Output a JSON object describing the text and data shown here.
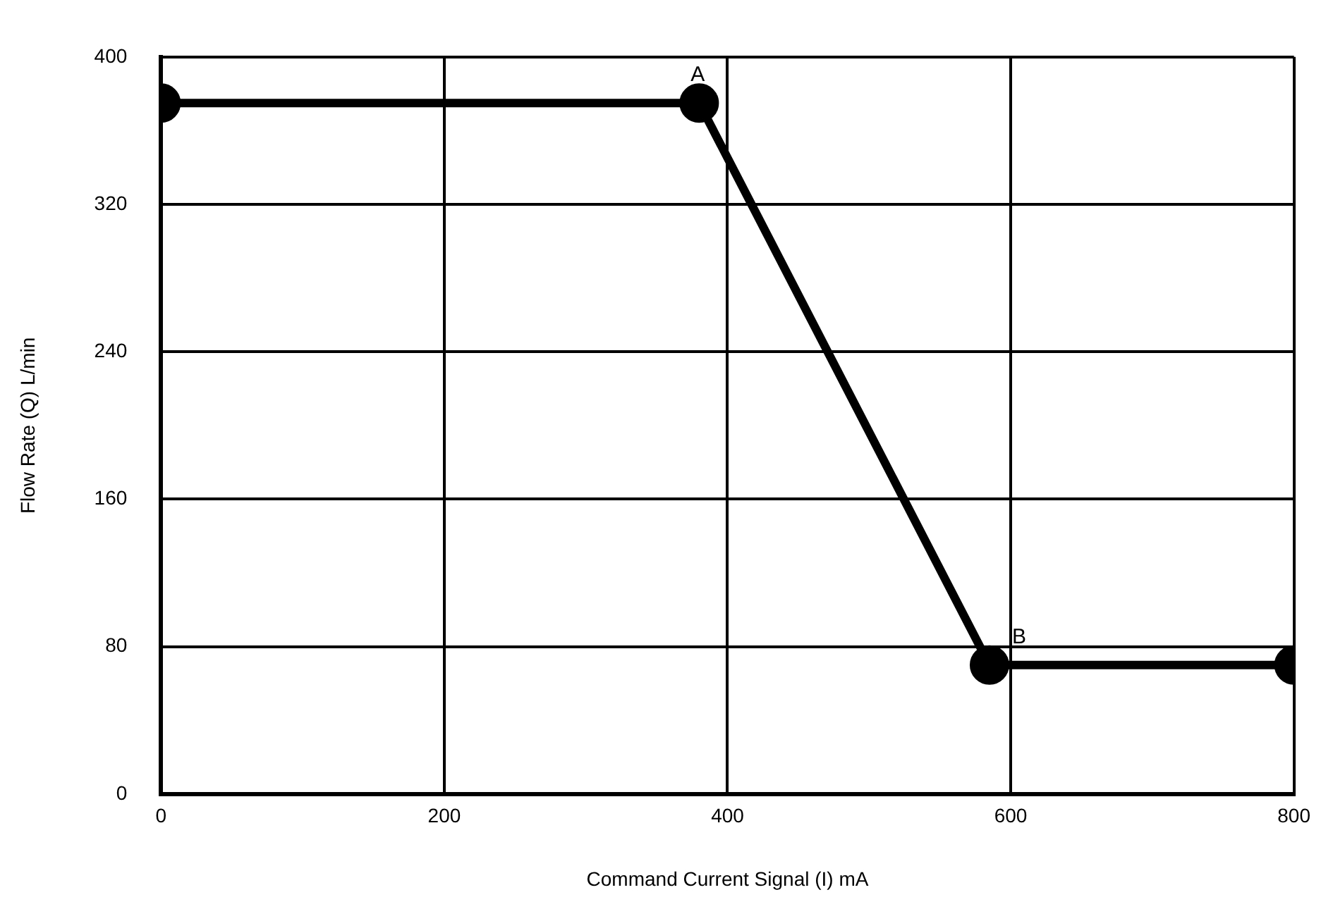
{
  "chart_data": {
    "type": "line",
    "xlabel": "Command Current Signal (I) mA",
    "ylabel": "Flow Rate (Q) L/min",
    "x": [
      0,
      380,
      585,
      800
    ],
    "series": [
      {
        "color": "#000000",
        "values": [
          375,
          375,
          70,
          70
        ]
      }
    ],
    "xlim": [
      0,
      800
    ],
    "xticks": [
      0,
      200,
      400,
      600,
      800
    ],
    "ylim": [
      0,
      400
    ],
    "yticks": [
      0,
      80,
      160,
      240,
      320,
      400
    ],
    "grid": true,
    "legend": false,
    "marker": "circle",
    "line_style": "solid",
    "annotations": [
      {
        "text": "A",
        "x": 380,
        "y": 375
      },
      {
        "text": "B",
        "x": 585,
        "y": 70
      }
    ]
  }
}
